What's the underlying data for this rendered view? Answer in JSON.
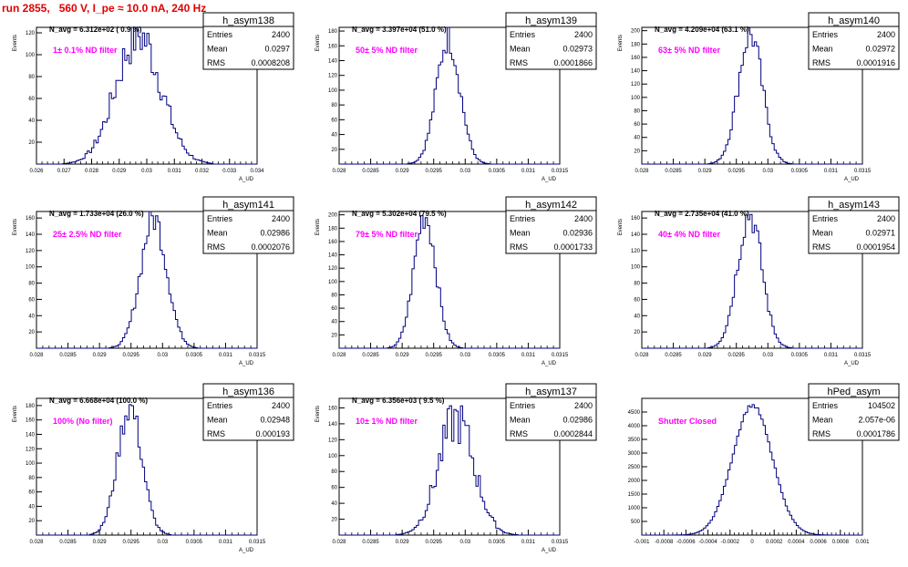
{
  "page_title": "run 2855,   560 V, I_pe ≈ 10.0 nA, 240 Hz",
  "colors": {
    "hist": "#000080",
    "label": "#ff00ff",
    "title": "#e00000"
  },
  "chart_data": [
    {
      "type": "histogram",
      "name": "h_asym138",
      "stats": {
        "Entries": "2400",
        "Mean": "0.0297",
        "RMS": "0.0008208"
      },
      "navg": "N_avg = 6.312e+02 ( 0.9 %)",
      "label": "1± 0.1% ND filter",
      "ylabel": "Events",
      "xlabel": "A_UD",
      "xlim": [
        0.026,
        0.034
      ],
      "xticks": [
        0.026,
        0.027,
        0.028,
        0.029,
        0.03,
        0.031,
        0.032,
        0.033,
        0.034
      ],
      "ylim": [
        0,
        125
      ],
      "yticks": [
        20,
        40,
        60,
        80,
        100,
        120
      ],
      "mean": 0.0297,
      "sigma": 0.00082,
      "peak": 118,
      "noise": 0.2
    },
    {
      "type": "histogram",
      "name": "h_asym139",
      "stats": {
        "Entries": "2400",
        "Mean": "0.02973",
        "RMS": "0.0001866"
      },
      "navg": "N_avg = 3.397e+04 (51.0 %)",
      "label": "50± 5% ND filter",
      "ylabel": "Events",
      "xlabel": "A_UD",
      "xlim": [
        0.028,
        0.0315
      ],
      "xticks": [
        0.028,
        0.0285,
        0.029,
        0.0295,
        0.03,
        0.0305,
        0.031,
        0.0315
      ],
      "ylim": [
        0,
        185
      ],
      "yticks": [
        20,
        40,
        60,
        80,
        100,
        120,
        140,
        160,
        180
      ],
      "mean": 0.02973,
      "sigma": 0.000187,
      "peak": 170,
      "noise": 0.12
    },
    {
      "type": "histogram",
      "name": "h_asym140",
      "stats": {
        "Entries": "2400",
        "Mean": "0.02972",
        "RMS": "0.0001916"
      },
      "navg": "N_avg = 4.209e+04 (63.1 %)",
      "label": "63± 5% ND filter",
      "ylabel": "Events",
      "xlabel": "A_UD",
      "xlim": [
        0.028,
        0.0315
      ],
      "xticks": [
        0.028,
        0.0285,
        0.029,
        0.0295,
        0.03,
        0.0305,
        0.031,
        0.0315
      ],
      "ylim": [
        0,
        205
      ],
      "yticks": [
        20,
        40,
        60,
        80,
        100,
        120,
        140,
        160,
        180,
        200
      ],
      "mean": 0.02972,
      "sigma": 0.000192,
      "peak": 195,
      "noise": 0.12
    },
    {
      "type": "histogram",
      "name": "h_asym141",
      "stats": {
        "Entries": "2400",
        "Mean": "0.02986",
        "RMS": "0.0002076"
      },
      "navg": "N_avg = 1.733e+04 (26.0 %)",
      "label": "25± 2.5% ND filter",
      "ylabel": "Events",
      "xlabel": "A_UD",
      "xlim": [
        0.028,
        0.0315
      ],
      "xticks": [
        0.028,
        0.0285,
        0.029,
        0.0295,
        0.03,
        0.0305,
        0.031,
        0.0315
      ],
      "ylim": [
        0,
        168
      ],
      "yticks": [
        20,
        40,
        60,
        80,
        100,
        120,
        140,
        160
      ],
      "mean": 0.02986,
      "sigma": 0.000208,
      "peak": 160,
      "noise": 0.12
    },
    {
      "type": "histogram",
      "name": "h_asym142",
      "stats": {
        "Entries": "2400",
        "Mean": "0.02936",
        "RMS": "0.0001733"
      },
      "navg": "N_avg = 5.302e+04 (79.5 %)",
      "label": "79± 5% ND filter",
      "ylabel": "Events",
      "xlabel": "A_UD",
      "xlim": [
        0.028,
        0.0315
      ],
      "xticks": [
        0.028,
        0.0285,
        0.029,
        0.0295,
        0.03,
        0.0305,
        0.031,
        0.0315
      ],
      "ylim": [
        0,
        205
      ],
      "yticks": [
        20,
        40,
        60,
        80,
        100,
        120,
        140,
        160,
        180,
        200
      ],
      "mean": 0.02936,
      "sigma": 0.000173,
      "peak": 200,
      "noise": 0.12
    },
    {
      "type": "histogram",
      "name": "h_asym143",
      "stats": {
        "Entries": "2400",
        "Mean": "0.02971",
        "RMS": "0.0001954"
      },
      "navg": "N_avg = 2.735e+04 (41.0 %)",
      "label": "40± 4% ND filter",
      "ylabel": "Events",
      "xlabel": "A_UD",
      "xlim": [
        0.028,
        0.0315
      ],
      "xticks": [
        0.028,
        0.0285,
        0.029,
        0.0295,
        0.03,
        0.0305,
        0.031,
        0.0315
      ],
      "ylim": [
        0,
        168
      ],
      "yticks": [
        20,
        40,
        60,
        80,
        100,
        120,
        140,
        160
      ],
      "mean": 0.02971,
      "sigma": 0.000195,
      "peak": 165,
      "noise": 0.12
    },
    {
      "type": "histogram",
      "name": "h_asym136",
      "stats": {
        "Entries": "2400",
        "Mean": "0.02948",
        "RMS": "0.000193"
      },
      "navg": "N_avg = 6.668e+04 (100.0 %)",
      "label": "100% (No filter)",
      "ylabel": "Events",
      "xlabel": "A_UD",
      "xlim": [
        0.028,
        0.0315
      ],
      "xticks": [
        0.028,
        0.0285,
        0.029,
        0.0295,
        0.03,
        0.0305,
        0.031,
        0.0315
      ],
      "ylim": [
        0,
        190
      ],
      "yticks": [
        20,
        40,
        60,
        80,
        100,
        120,
        140,
        160,
        180
      ],
      "mean": 0.02948,
      "sigma": 0.000193,
      "peak": 178,
      "noise": 0.12
    },
    {
      "type": "histogram",
      "name": "h_asym137",
      "stats": {
        "Entries": "2400",
        "Mean": "0.02986",
        "RMS": "0.0002844"
      },
      "navg": "N_avg = 6.356e+03 ( 9.5 %)",
      "label": "10± 1% ND filter",
      "ylabel": "Events",
      "xlabel": "A_UD",
      "xlim": [
        0.028,
        0.0315
      ],
      "xticks": [
        0.028,
        0.0285,
        0.029,
        0.0295,
        0.03,
        0.0305,
        0.031,
        0.0315
      ],
      "ylim": [
        0,
        172
      ],
      "yticks": [
        20,
        40,
        60,
        80,
        100,
        120,
        140,
        160
      ],
      "mean": 0.02986,
      "sigma": 0.000284,
      "peak": 145,
      "noise": 0.22
    },
    {
      "type": "histogram",
      "name": "hPed_asym",
      "stats": {
        "Entries": "104502",
        "Mean": "2.057e-06",
        "RMS": "0.0001786"
      },
      "navg": "",
      "label": "Shutter Closed",
      "ylabel": "",
      "xlabel": "",
      "xlim": [
        -0.001,
        0.001
      ],
      "xticks": [
        -0.001,
        -0.0008,
        -0.0006,
        -0.0004,
        -0.0002,
        0,
        0.0002,
        0.0004,
        0.0006,
        0.0008,
        0.001
      ],
      "ylim": [
        0,
        5000
      ],
      "yticks": [
        500,
        1000,
        1500,
        2000,
        2500,
        3000,
        3500,
        4000,
        4500
      ],
      "mean": 2e-06,
      "sigma": 0.000179,
      "peak": 4750,
      "noise": 0.015
    }
  ]
}
